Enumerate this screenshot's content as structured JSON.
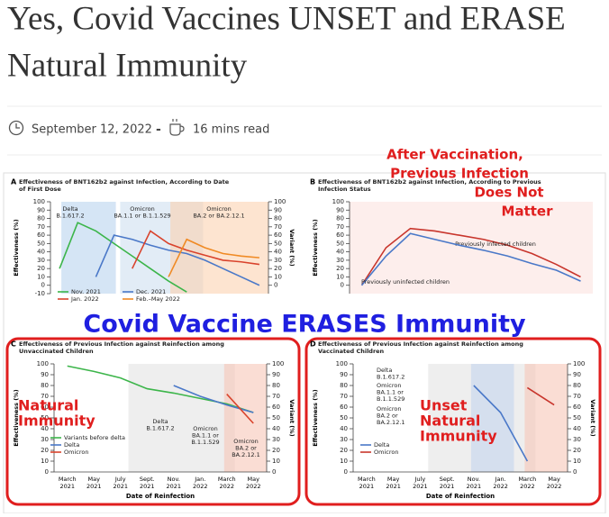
{
  "header": {
    "title_lines": [
      "Yes, Covid Vaccines UNSET and ERASE",
      "Natural Immunity"
    ]
  },
  "meta": {
    "date": "September 12, 2022",
    "separator": "-",
    "read_time": "16 mins read"
  },
  "figure": {
    "banner": "Covid Vaccine ERASES Immunity",
    "panels": [
      {
        "letter": "A",
        "title_lines": [
          "Effectiveness of BNT162b2 against Infection, According to Date",
          "of First Dose"
        ],
        "ylabel": "Effectiveness (%)",
        "y2label": "Variant (%)",
        "ylim": [
          -10,
          100
        ],
        "yticks": [
          -10,
          0,
          10,
          20,
          30,
          40,
          50,
          60,
          70,
          80,
          90,
          100
        ],
        "y2lim": [
          -10,
          100
        ],
        "y2ticks": [
          0,
          10,
          20,
          30,
          40,
          50,
          60,
          70,
          80,
          90,
          100
        ],
        "annotations": [
          [
            "Delta",
            "B.1.617.2"
          ],
          [
            "Omicron",
            "BA.1.1 or B.1.1.529"
          ],
          [
            "Omicron",
            "BA.2 or BA.2.12.1"
          ]
        ],
        "series": [
          {
            "name": "Nov. 2021",
            "color": "#3cb54a",
            "values": [
              20,
              75,
              65,
              50,
              35,
              20,
              5,
              -8,
              null,
              null,
              null,
              null
            ]
          },
          {
            "name": "Dec. 2021",
            "color": "#4a78c8",
            "values": [
              null,
              null,
              10,
              60,
              55,
              48,
              42,
              38,
              30,
              20,
              10,
              0
            ]
          },
          {
            "name": "Jan. 2022",
            "color": "#d9432c",
            "values": [
              null,
              null,
              null,
              null,
              20,
              65,
              50,
              42,
              36,
              30,
              28,
              25
            ]
          },
          {
            "name": "Feb.–May 2022",
            "color": "#f08a24",
            "values": [
              null,
              null,
              null,
              null,
              null,
              null,
              10,
              55,
              45,
              38,
              35,
              33
            ]
          }
        ]
      },
      {
        "letter": "B",
        "title_lines": [
          "Effectiveness of BNT162b2 against Infection, According to Previous",
          "Infection Status"
        ],
        "ylabel": "Effectiveness (%)",
        "ylim": [
          -10,
          100
        ],
        "yticks": [
          0,
          10,
          20,
          30,
          40,
          50,
          60,
          70,
          80,
          90,
          100
        ],
        "overlay": [
          "After Vaccination,",
          "Previous Infection",
          "Does Not",
          "Matter"
        ],
        "series": [
          {
            "name": "Previously infected children",
            "color": "#c8352c",
            "values": [
              0,
              45,
              68,
              65,
              60,
              55,
              48,
              38,
              25,
              10
            ]
          },
          {
            "name": "Previously uninfected children",
            "color": "#4a78c8",
            "values": [
              0,
              35,
              62,
              55,
              48,
              42,
              35,
              26,
              18,
              5
            ]
          }
        ]
      },
      {
        "letter": "C",
        "title_lines": [
          "Effectiveness of Previous Infection against Reinfection among",
          "Unvaccinated Children"
        ],
        "ylabel": "Effectiveness (%)",
        "y2label": "Variant (%)",
        "xlabel": "Date of Reinfection",
        "x_months": [
          "March",
          "May",
          "July",
          "Sept.",
          "Nov.",
          "Jan.",
          "March",
          "May"
        ],
        "x_years": [
          "2021",
          "2021",
          "2021",
          "2021",
          "2021",
          "2022",
          "2022",
          "2022"
        ],
        "ylim": [
          0,
          100
        ],
        "yticks": [
          0,
          10,
          20,
          30,
          40,
          50,
          60,
          70,
          80,
          90,
          100
        ],
        "y2lim": [
          0,
          100
        ],
        "y2ticks": [
          0,
          10,
          20,
          30,
          40,
          50,
          60,
          70,
          80,
          90,
          100
        ],
        "annotations": [
          [
            "Delta",
            "B.1.617.2"
          ],
          [
            "Omicron",
            "BA.1.1 or",
            "B.1.1.529"
          ],
          [
            "Omicron",
            "BA.2 or",
            "BA.2.12.1"
          ]
        ],
        "overlay": [
          "Natural",
          "Immunity"
        ],
        "series": [
          {
            "name": "Variants before delta",
            "color": "#3cb54a",
            "values": [
              98,
              93,
              87,
              77,
              73,
              68,
              63,
              55
            ]
          },
          {
            "name": "Delta",
            "color": "#4a78c8",
            "values": [
              null,
              null,
              null,
              null,
              80,
              70,
              62,
              55
            ]
          },
          {
            "name": "Omicron",
            "color": "#d9432c",
            "values": [
              null,
              null,
              null,
              null,
              null,
              null,
              72,
              45
            ]
          }
        ]
      },
      {
        "letter": "D",
        "title_lines": [
          "Effectiveness of Previous Infection against Reinfection among",
          "Vaccinated Children"
        ],
        "ylabel": "Effectiveness (%)",
        "y2label": "Variant (%)",
        "xlabel": "Date of Reinfection",
        "x_months": [
          "March",
          "May",
          "July",
          "Sept.",
          "Nov.",
          "Jan.",
          "March",
          "May"
        ],
        "x_years": [
          "2021",
          "2021",
          "2021",
          "2021",
          "2021",
          "2022",
          "2022",
          "2022"
        ],
        "ylim": [
          0,
          100
        ],
        "yticks": [
          0,
          10,
          20,
          30,
          40,
          50,
          60,
          70,
          80,
          90,
          100
        ],
        "y2lim": [
          0,
          100
        ],
        "y2ticks": [
          0,
          10,
          20,
          30,
          40,
          50,
          60,
          70,
          80,
          90,
          100
        ],
        "annotations": [
          [
            "Delta",
            "B.1.617.2"
          ],
          [
            "Omicron",
            "BA.1.1 or",
            "B.1.1.529"
          ],
          [
            "Omicron",
            "BA.2 or",
            "BA.2.12.1"
          ]
        ],
        "overlay": [
          "Unset",
          "Natural",
          "Immunity"
        ],
        "series": [
          {
            "name": "Delta",
            "color": "#4a78c8",
            "values": [
              null,
              null,
              null,
              null,
              80,
              55,
              10,
              null
            ]
          },
          {
            "name": "Omicron",
            "color": "#c8352c",
            "values": [
              null,
              null,
              null,
              null,
              null,
              null,
              78,
              62
            ]
          }
        ]
      }
    ]
  }
}
